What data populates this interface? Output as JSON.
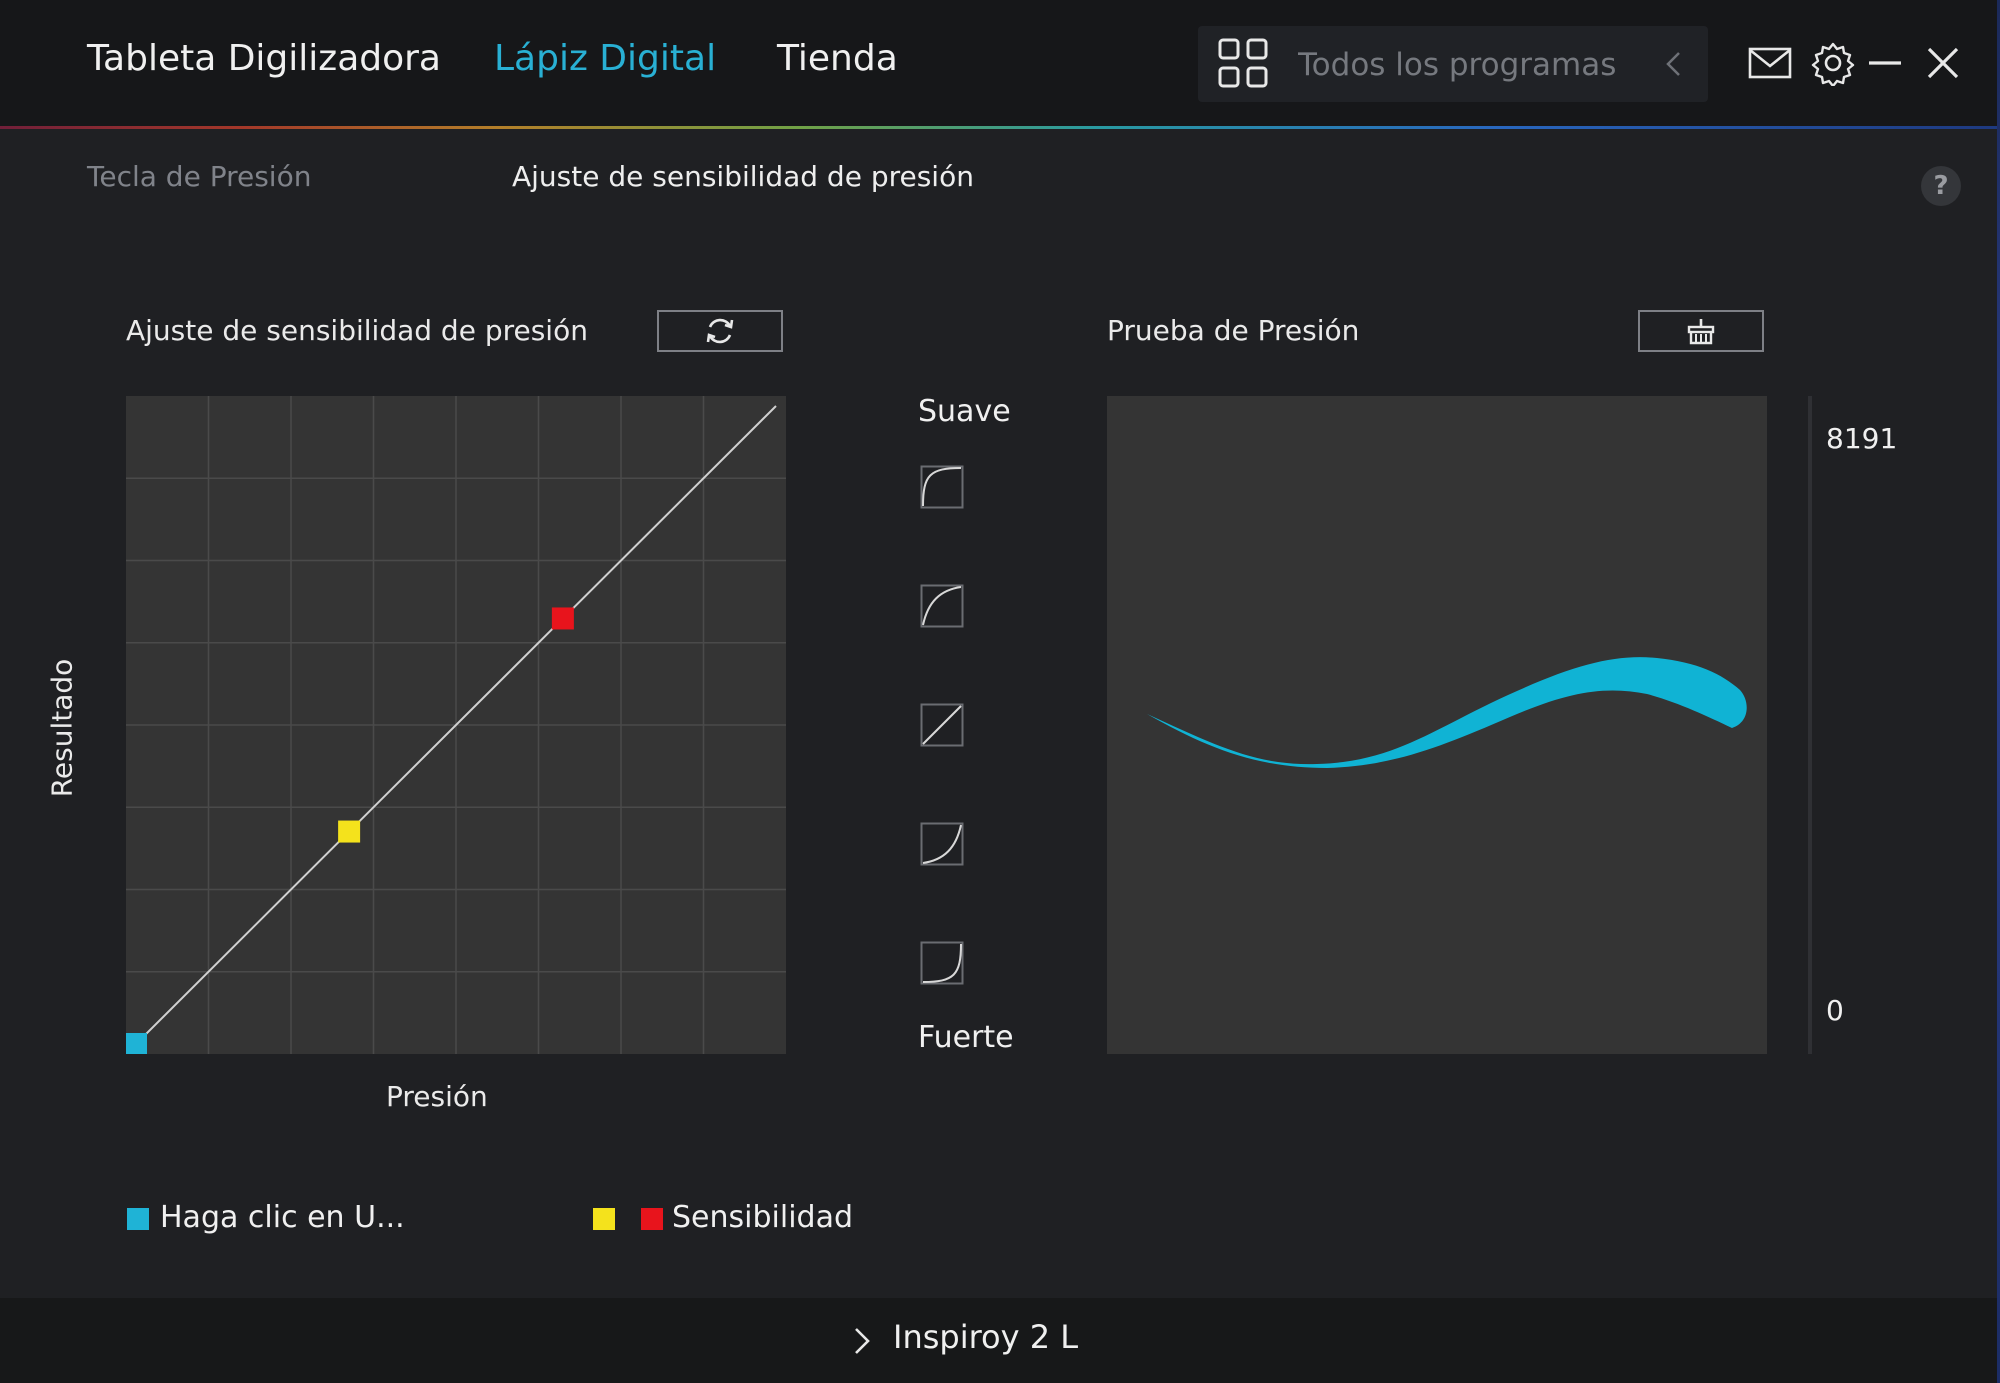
{
  "header": {
    "tabs": [
      {
        "label": "Tableta Digilizadora",
        "active": false
      },
      {
        "label": "Lápiz Digital",
        "active": true
      },
      {
        "label": "Tienda",
        "active": false
      }
    ],
    "search": {
      "placeholder": "Todos los programas",
      "icon": "grid-icon"
    },
    "icons": [
      "mail-icon",
      "gear-icon",
      "minimize-icon",
      "close-icon"
    ],
    "accent_color": "#29b0d4"
  },
  "subtabs": [
    {
      "label": "Tecla de Presión",
      "active": false
    },
    {
      "label": "Ajuste de sensibilidad de presión",
      "active": true
    }
  ],
  "help_label": "?",
  "sensitivity": {
    "title": "Ajuste de sensibilidad de presión",
    "reset_icon": "refresh-icon",
    "y_label": "Resultado",
    "x_label": "Presión",
    "curve": {
      "type": "line",
      "x_range": [
        0,
        1
      ],
      "y_range": [
        0,
        1
      ],
      "grid_divisions": 8,
      "points": [
        {
          "name": "start",
          "x": 0,
          "y": 0,
          "color": "#1fb3d6"
        },
        {
          "name": "low-handle",
          "x": 0.333,
          "y": 0.333,
          "color": "#f4e21c"
        },
        {
          "name": "high-handle",
          "x": 0.667,
          "y": 0.667,
          "color": "#e8141c"
        },
        {
          "name": "end",
          "x": 1,
          "y": 1,
          "color": "#1fb3d6"
        }
      ]
    }
  },
  "presets": {
    "top_label": "Suave",
    "bottom_label": "Fuerte",
    "items": [
      "curve-soft-2-icon",
      "curve-soft-1-icon",
      "curve-linear-icon",
      "curve-hard-1-icon",
      "curve-hard-2-icon"
    ]
  },
  "pressure_test": {
    "title": "Prueba de Presión",
    "clear_icon": "broom-icon",
    "scale_max": "8191",
    "scale_min": "0",
    "stroke_color": "#10b3d4"
  },
  "legend": {
    "item1_label": "Haga clic en U...",
    "item1_color": "#1fb3d6",
    "item2_label": "Sensibilidad",
    "item2_colors": [
      "#f4e21c",
      "#e8141c"
    ]
  },
  "footer": {
    "device": "Inspiroy 2 L"
  }
}
